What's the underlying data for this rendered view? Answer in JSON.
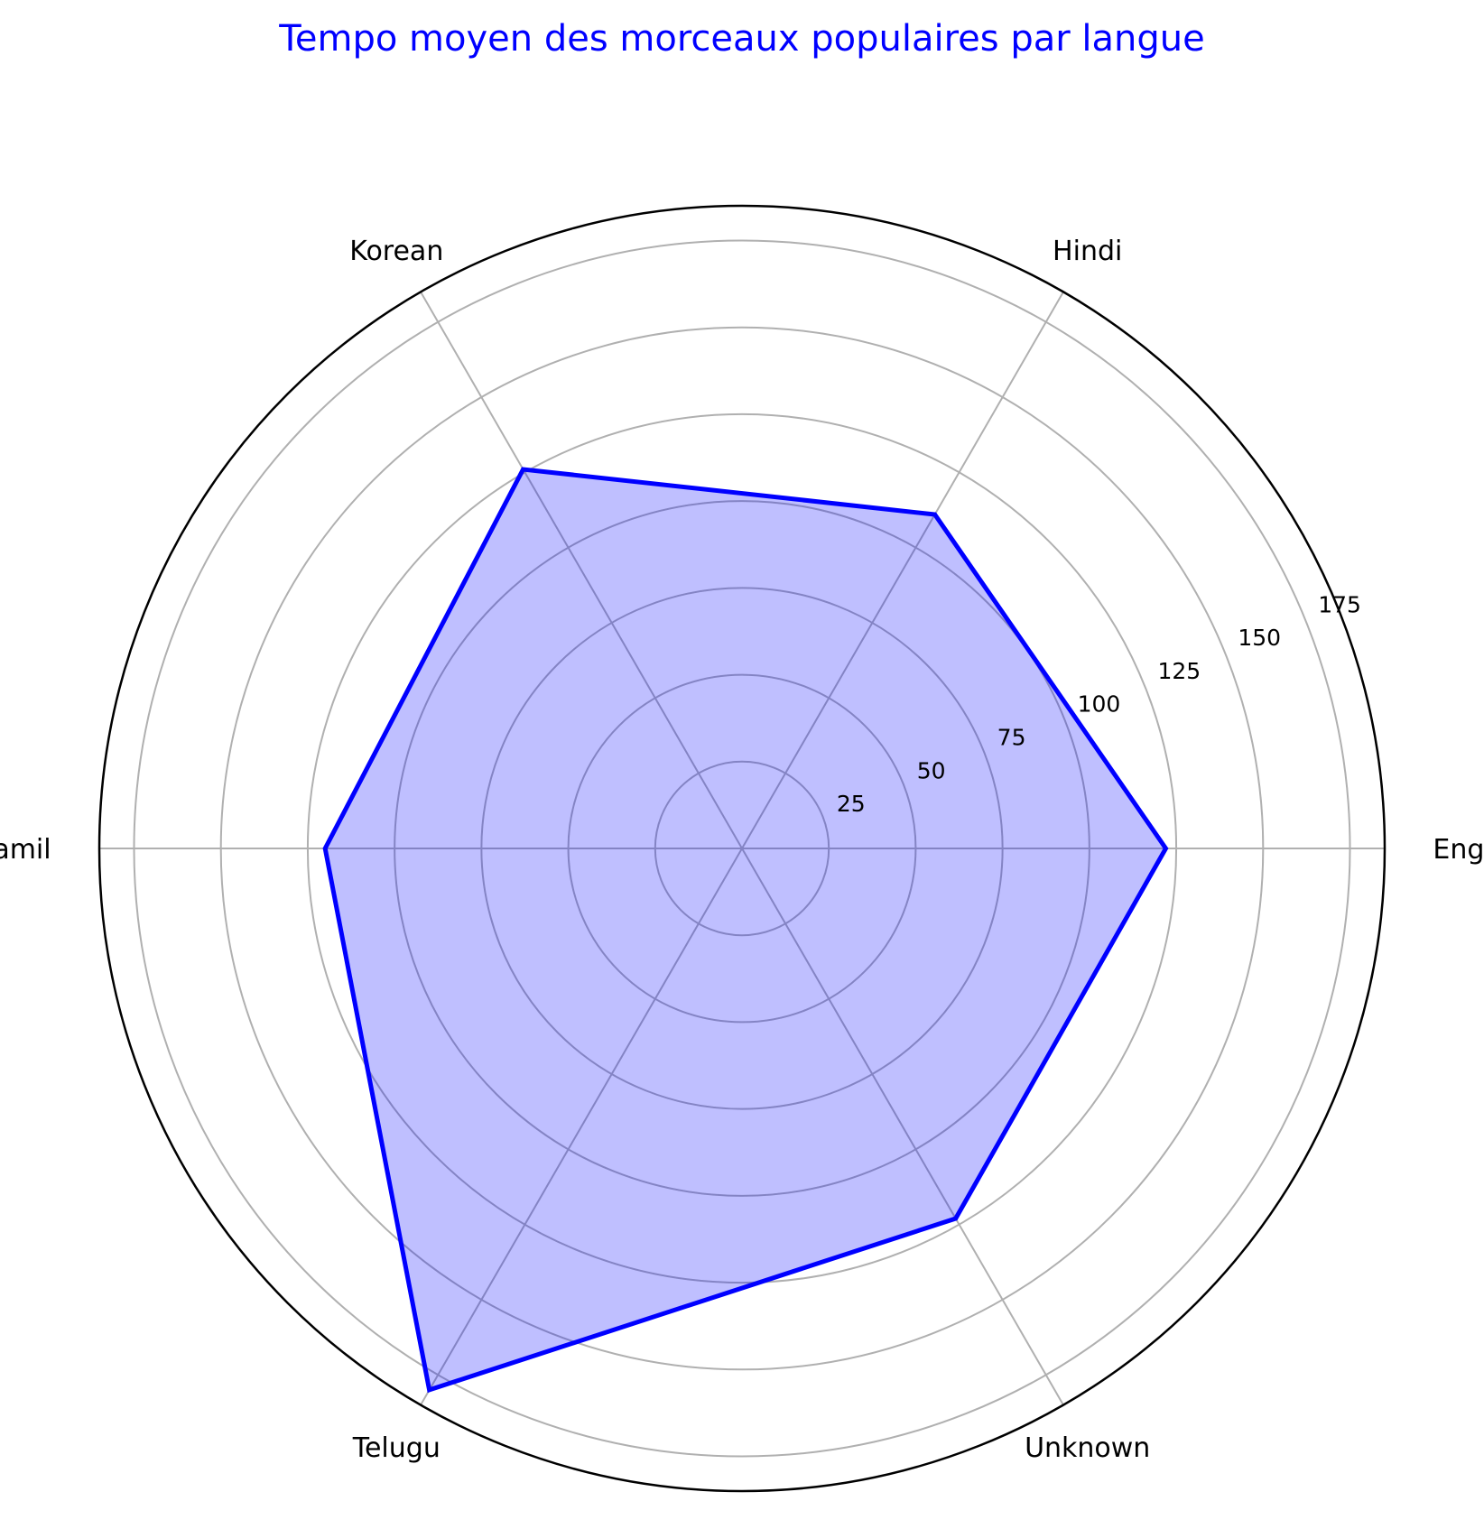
{
  "chart_data": {
    "type": "radar",
    "title": "Tempo moyen des morceaux populaires par langue",
    "categories": [
      "English",
      "Hindi",
      "Korean",
      "Tamil",
      "Telugu",
      "Unknown"
    ],
    "series": [
      {
        "values": [
          122,
          111,
          126,
          120,
          180,
          123
        ]
      }
    ],
    "r_ticks": [
      25,
      50,
      75,
      100,
      125,
      150,
      175
    ],
    "rlim": [
      0,
      185
    ],
    "grid": true,
    "colors": {
      "line": "#0000ff",
      "fill": "#0000ff",
      "fill_opacity": 0.25,
      "grid": "#b0b0b0",
      "title": "#0000ff"
    }
  }
}
